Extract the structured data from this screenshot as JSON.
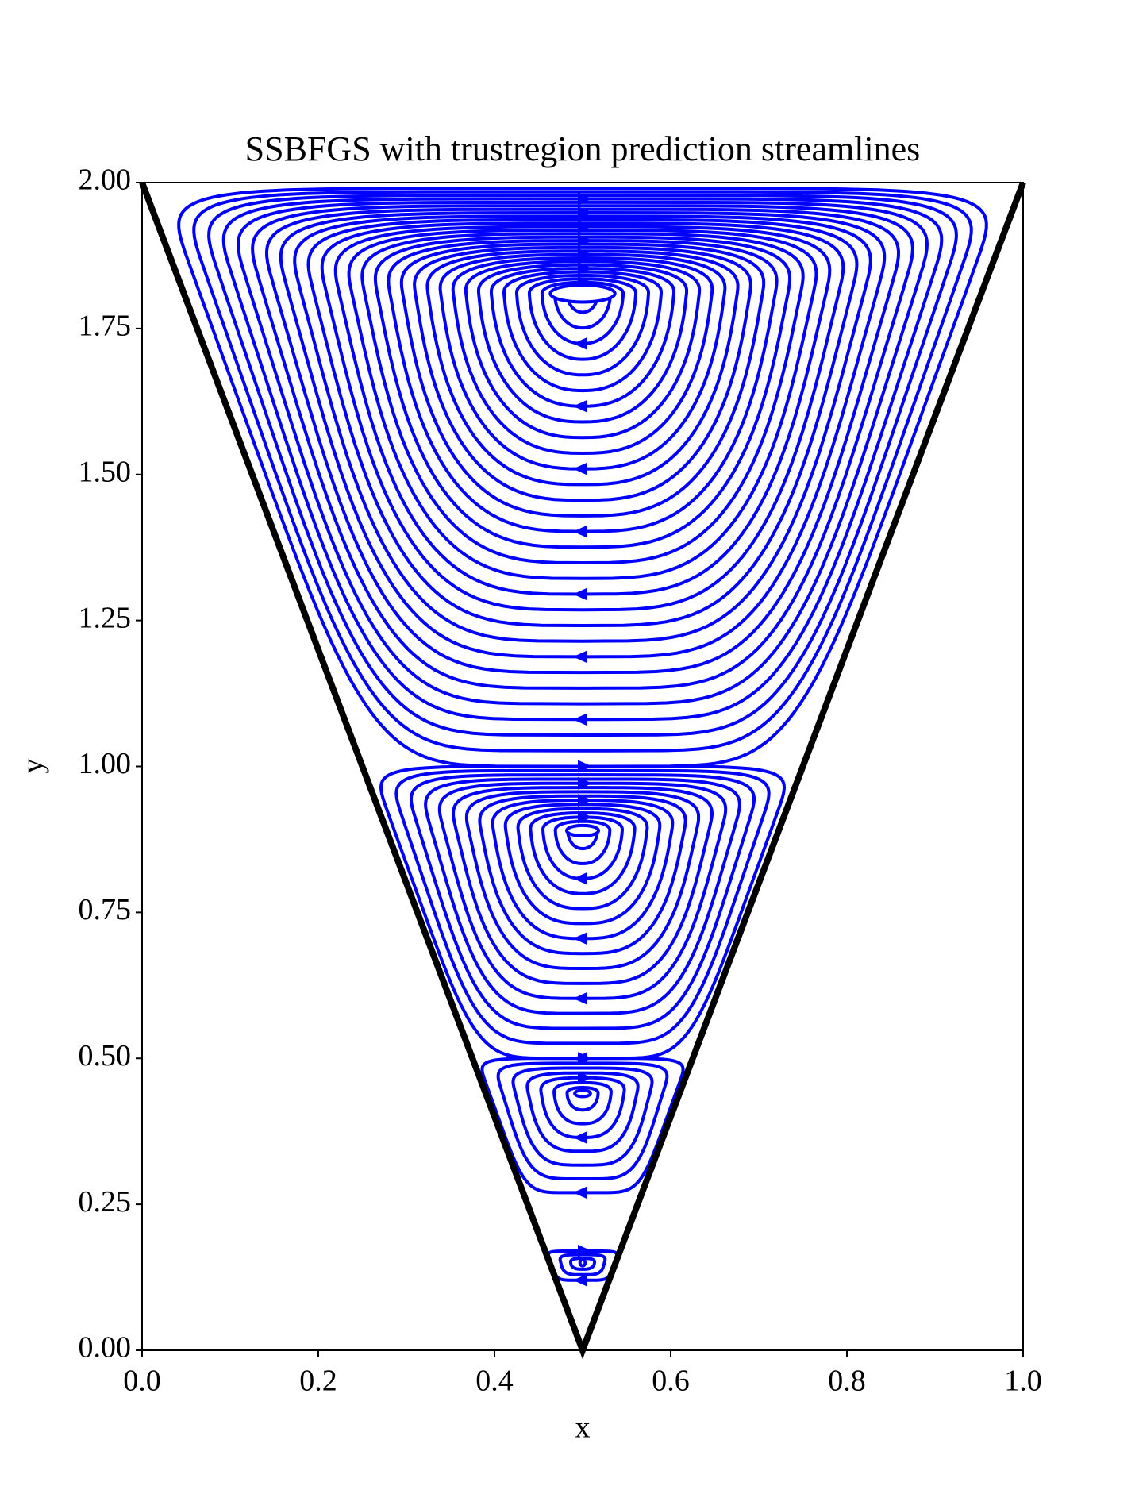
{
  "chart_data": {
    "type": "streamplot",
    "title": "SSBFGS with trustregion prediction streamlines",
    "x_label": "x",
    "y_label": "y",
    "xlim": [
      0,
      1
    ],
    "ylim": [
      0,
      2
    ],
    "xticks": [
      {
        "value": 0,
        "label": "0.0"
      },
      {
        "value": 0.2,
        "label": "0.2"
      },
      {
        "value": 0.4,
        "label": "0.4"
      },
      {
        "value": 0.6,
        "label": "0.6"
      },
      {
        "value": 0.8,
        "label": "0.8"
      },
      {
        "value": 1,
        "label": "1.0"
      }
    ],
    "yticks": [
      {
        "value": 0,
        "label": "0.00"
      },
      {
        "value": 0.25,
        "label": "0.25"
      },
      {
        "value": 0.5,
        "label": "0.50"
      },
      {
        "value": 0.75,
        "label": "0.75"
      },
      {
        "value": 1,
        "label": "1.00"
      },
      {
        "value": 1.25,
        "label": "1.25"
      },
      {
        "value": 1.5,
        "label": "1.50"
      },
      {
        "value": 1.75,
        "label": "1.75"
      },
      {
        "value": 2,
        "label": "2.00"
      }
    ],
    "boundary": {
      "x": [
        0,
        0.5,
        1
      ],
      "y": [
        2,
        0,
        2
      ],
      "color": "#000000"
    },
    "streamline_color": "#0000ff",
    "vortices": {
      "x": [
        0.5,
        0.5,
        0.5,
        0.5
      ],
      "y": [
        1.81,
        0.89,
        0.44,
        0.15
      ],
      "top": [
        1.99,
        1.0,
        0.5,
        0.17
      ],
      "bottom": [
        1.0,
        0.5,
        0.27,
        0.12
      ]
    }
  }
}
